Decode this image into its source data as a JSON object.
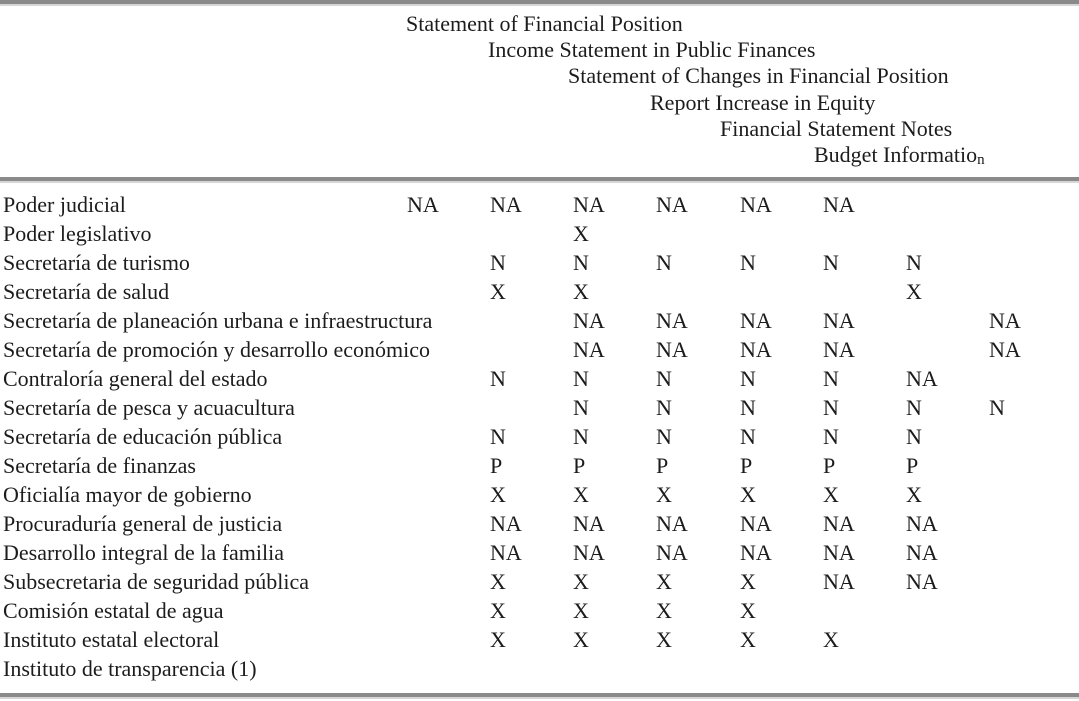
{
  "page": {
    "background": "#ffffff",
    "text_color": "#1c1c1c",
    "rule_dark_color": "#8a8a8a",
    "rule_light_color": "#d6d6d6"
  },
  "header": {
    "lines": [
      {
        "text": "Statement of Financial Position"
      },
      {
        "text": "Income Statement in Public Finances"
      },
      {
        "text": "Statement of Changes in Financial Position"
      },
      {
        "text": "Report Increase in Equity"
      },
      {
        "text": "Financial Statement Notes"
      },
      {
        "text": "Budget Informatio",
        "sub": "n"
      }
    ]
  },
  "table": {
    "rows": [
      {
        "label": "Poder judicial",
        "values": [
          "NA",
          "NA",
          "NA",
          "NA",
          "NA",
          "NA",
          "",
          ""
        ]
      },
      {
        "label": "Poder legislativo",
        "values": [
          "",
          "",
          "X",
          "",
          "",
          "",
          "",
          ""
        ]
      },
      {
        "label": "Secretaría de turismo",
        "values": [
          "",
          "N",
          "N",
          "N",
          "N",
          "N",
          "N",
          ""
        ]
      },
      {
        "label": "Secretaría de salud",
        "values": [
          "",
          "X",
          "X",
          "",
          "",
          "",
          "X",
          ""
        ]
      },
      {
        "label": "Secretaría de planeación urbana e infraestructura",
        "values": [
          "",
          "",
          "NA",
          "NA",
          "NA",
          "NA",
          "",
          "NA"
        ]
      },
      {
        "label": "Secretaría de promoción y desarrollo económico",
        "values": [
          "",
          "",
          "NA",
          "NA",
          "NA",
          "NA",
          "",
          "NA"
        ]
      },
      {
        "label": "Contraloría general del estado",
        "values": [
          "",
          "N",
          "N",
          "N",
          "N",
          "N",
          "NA",
          ""
        ]
      },
      {
        "label": "Secretaría de pesca y acuacultura",
        "values": [
          "",
          "",
          "N",
          "N",
          "N",
          "N",
          "N",
          "N"
        ]
      },
      {
        "label": "Secretaría de educación pública",
        "values": [
          "",
          "N",
          "N",
          "N",
          "N",
          "N",
          "N",
          ""
        ]
      },
      {
        "label": "Secretaría de finanzas",
        "values": [
          "",
          "P",
          "P",
          "P",
          "P",
          "P",
          "P",
          ""
        ]
      },
      {
        "label": "Oficialía mayor de gobierno",
        "values": [
          "",
          "X",
          "X",
          "X",
          "X",
          "X",
          "X",
          ""
        ]
      },
      {
        "label": "Procuraduría general de justicia",
        "values": [
          "",
          "NA",
          "NA",
          "NA",
          "NA",
          "NA",
          "NA",
          ""
        ]
      },
      {
        "label": "Desarrollo integral de la familia",
        "values": [
          "",
          "NA",
          "NA",
          "NA",
          "NA",
          "NA",
          "NA",
          ""
        ]
      },
      {
        "label": "Subsecretaria de seguridad pública",
        "values": [
          "",
          "X",
          "X",
          "X",
          "X",
          "NA",
          "NA",
          ""
        ]
      },
      {
        "label": "Comisión estatal de agua",
        "values": [
          "",
          "X",
          "X",
          "X",
          "X",
          "",
          "",
          ""
        ]
      },
      {
        "label": "Instituto estatal electoral",
        "values": [
          "",
          "X",
          "X",
          "X",
          "X",
          "X",
          "",
          ""
        ]
      },
      {
        "label": "Instituto de transparencia (1)",
        "values": [
          "",
          "",
          "",
          "",
          "",
          "",
          "",
          ""
        ]
      }
    ]
  }
}
